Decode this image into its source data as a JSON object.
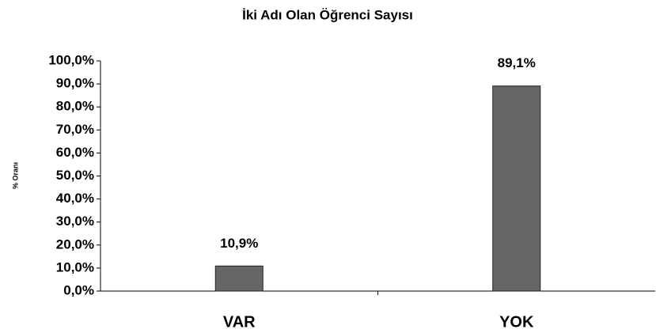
{
  "chart_data": {
    "type": "bar",
    "title": "İki Adı Olan Öğrenci Sayısı",
    "y_label": "% Oranı",
    "categories": [
      "VAR",
      "YOK"
    ],
    "values": [
      10.9,
      89.1
    ],
    "value_labels": [
      "10,9%",
      "89,1%"
    ],
    "color": "#666666",
    "ylim": [
      0,
      100
    ],
    "yticks": [
      {
        "value": 0,
        "label": "0,0%"
      },
      {
        "value": 10,
        "label": "10,0%"
      },
      {
        "value": 20,
        "label": "20,0%"
      },
      {
        "value": 30,
        "label": "30,0%"
      },
      {
        "value": 40,
        "label": "40,0%"
      },
      {
        "value": 50,
        "label": "50,0%"
      },
      {
        "value": 60,
        "label": "60,0%"
      },
      {
        "value": 70,
        "label": "70,0%"
      },
      {
        "value": 80,
        "label": "80,0%"
      },
      {
        "value": 90,
        "label": "90,0%"
      },
      {
        "value": 100,
        "label": "100,0%"
      }
    ],
    "grid": false
  }
}
